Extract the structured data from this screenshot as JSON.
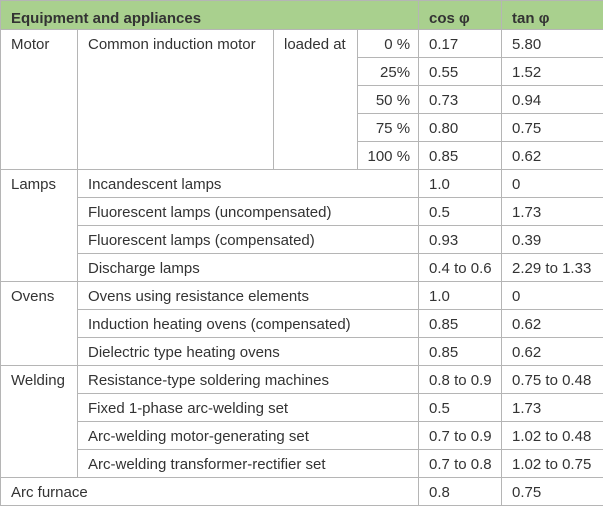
{
  "header": {
    "equipment": "Equipment and appliances",
    "cos": "cos φ",
    "tan": "tan φ"
  },
  "groups": [
    {
      "name": "Motor",
      "item": "Common induction motor",
      "condition": "loaded at",
      "rows": [
        [
          "0 %",
          "0.17",
          "5.80"
        ],
        [
          "25%",
          "0.55",
          "1.52"
        ],
        [
          "50 %",
          "0.73",
          "0.94"
        ],
        [
          "75 %",
          "0.80",
          "0.75"
        ],
        [
          "100 %",
          "0.85",
          "0.62"
        ]
      ]
    },
    {
      "name": "Lamps",
      "rows": [
        [
          "Incandescent lamps",
          "1.0",
          "0"
        ],
        [
          "Fluorescent lamps (uncompensated)",
          "0.5",
          "1.73"
        ],
        [
          "Fluorescent lamps (compensated)",
          "0.93",
          "0.39"
        ],
        [
          "Discharge lamps",
          "0.4 to 0.6",
          "2.29 to 1.33"
        ]
      ]
    },
    {
      "name": "Ovens",
      "rows": [
        [
          "Ovens using resistance elements",
          "1.0",
          "0"
        ],
        [
          "Induction heating ovens (compensated)",
          "0.85",
          "0.62"
        ],
        [
          "Dielectric type heating ovens",
          "0.85",
          "0.62"
        ]
      ]
    },
    {
      "name": "Welding",
      "rows": [
        [
          "Resistance-type soldering machines",
          "0.8 to 0.9",
          "0.75 to 0.48"
        ],
        [
          "Fixed 1-phase arc-welding set",
          "0.5",
          "1.73"
        ],
        [
          "Arc-welding motor-generating set",
          "0.7 to 0.9",
          "1.02 to 0.48"
        ],
        [
          "Arc-welding transformer-rectifier set",
          "0.7 to 0.8",
          "1.02 to 0.75"
        ]
      ]
    }
  ],
  "last": {
    "name": "Arc furnace",
    "cos": "0.8",
    "tan": "0.75"
  }
}
